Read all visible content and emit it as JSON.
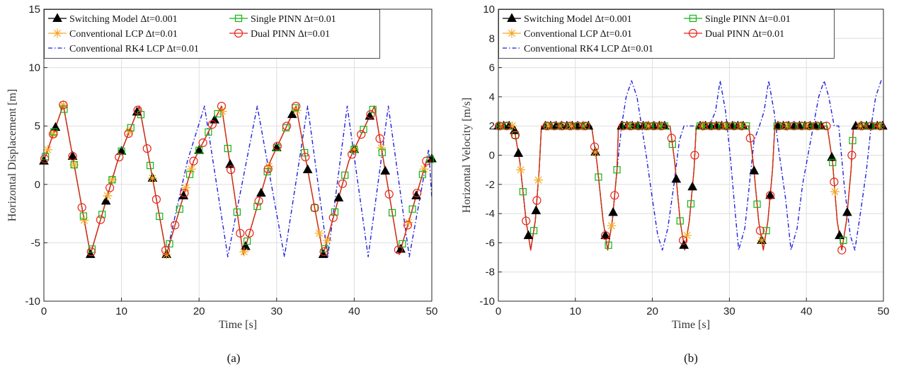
{
  "colors": {
    "switching": "#000000",
    "conventional_lcp": "#F5A623",
    "rk4": "#1F1FE0",
    "single_pinn": "#12B512",
    "dual_pinn": "#E8231C",
    "grid": "#dedede",
    "axis": "#262626"
  },
  "legend_entries": [
    {
      "key": "switching",
      "label": "Switching Model Δt=0.001",
      "marker": "triangle-icon",
      "line": "solid"
    },
    {
      "key": "single_pinn",
      "label": "Single PINN Δt=0.01",
      "marker": "square-icon",
      "line": "solid"
    },
    {
      "key": "conventional_lcp",
      "label": "Conventional LCP Δt=0.01",
      "marker": "asterisk-icon",
      "line": "solid"
    },
    {
      "key": "dual_pinn",
      "label": "Dual PINN Δt=0.01",
      "marker": "circle-icon",
      "line": "solid"
    },
    {
      "key": "rk4",
      "label": "Conventional RK4 LCP Δt=0.01",
      "marker": "none",
      "line": "dashdot"
    }
  ],
  "chart_data": [
    {
      "type": "line",
      "caption": "(a)",
      "xlabel": "Time [s]",
      "ylabel": "Horizontal Displacement [m]",
      "xlim": [
        0,
        50
      ],
      "ylim": [
        -10,
        15
      ],
      "xticks": [
        0,
        10,
        20,
        30,
        40,
        50
      ],
      "yticks": [
        -10,
        -5,
        0,
        5,
        10,
        15
      ],
      "grid": true,
      "legend_position": "top-left",
      "series": [
        {
          "name": "Switching Model Δt=0.001",
          "key": "switching",
          "x": [
            0,
            2.5,
            6,
            9.5,
            12.3,
            15.8,
            19.3,
            22.9,
            25.7,
            29.2,
            32.5,
            36,
            39.3,
            42.6,
            45.8,
            49.3,
            50
          ],
          "y": [
            2,
            6.8,
            -6,
            2,
            6.7,
            -6,
            2,
            6.7,
            -6,
            2,
            6.7,
            -6,
            2,
            6.7,
            -6,
            2,
            2.2
          ],
          "markers_x": [
            0,
            1.5,
            3.7,
            6,
            8,
            10,
            12,
            14,
            15.8,
            18,
            20,
            22,
            24,
            26,
            28,
            30,
            32,
            34,
            36,
            38,
            40,
            42,
            44,
            46,
            48,
            50
          ]
        },
        {
          "name": "Conventional LCP Δt=0.01",
          "key": "conventional_lcp",
          "x": [
            0,
            2.5,
            6,
            9.5,
            12.3,
            15.8,
            19.3,
            22.9,
            25.7,
            29.2,
            32.5,
            36,
            39.3,
            42.6,
            45.8,
            49.3,
            50
          ],
          "y": [
            2,
            6.8,
            -6,
            2,
            6.7,
            -6,
            2,
            6.7,
            -6,
            2,
            6.7,
            -6,
            2,
            6.7,
            -6,
            2,
            2.2
          ],
          "markers_x": [
            0.5,
            1.2,
            2.5,
            3.9,
            5.2,
            8.2,
            8.8,
            11,
            14,
            15.8,
            18.3,
            19,
            23,
            25.8,
            29,
            32.6,
            35.5,
            36.5,
            40,
            43.5,
            47,
            49
          ]
        },
        {
          "name": "Single PINN Δt=0.01",
          "key": "single_pinn",
          "x": [
            0,
            2.5,
            6,
            9.5,
            12.3,
            15.8,
            19.3,
            22.9,
            25.7,
            29.2,
            32.5,
            36,
            39.3,
            42.6,
            45.8,
            49.3,
            50
          ],
          "y": [
            2,
            6.8,
            -6,
            2,
            6.7,
            -6,
            2,
            6.7,
            -6,
            2,
            6.7,
            -6,
            2,
            6.7,
            -6,
            2,
            2.2
          ],
          "markers_x": [
            0.2,
            1.3,
            2.6,
            3.9,
            5.1,
            6.2,
            7.5,
            8.8,
            10,
            11.2,
            12.5,
            13.7,
            14.9,
            16.2,
            17.5,
            18.8,
            20,
            21.2,
            22.4,
            23.7,
            24.9,
            26.2,
            27.5,
            28.8,
            30,
            31.2,
            32.4,
            33.6,
            34.9,
            36.2,
            37.5,
            38.8,
            40,
            41.2,
            42.4,
            43.6,
            44.9,
            46.2,
            47.5,
            48.8,
            49.8
          ]
        },
        {
          "name": "Dual PINN Δt=0.01",
          "key": "dual_pinn",
          "x": [
            0,
            2.5,
            6,
            9.5,
            12.3,
            15.8,
            19.3,
            22.9,
            25.7,
            29.2,
            32.5,
            36,
            39.3,
            42.6,
            45.8,
            49.3,
            50
          ],
          "y": [
            2,
            6.8,
            -6,
            2,
            6.7,
            -6,
            2,
            6.7,
            -6,
            2,
            6.7,
            -6,
            2,
            6.7,
            -6,
            2,
            2.2
          ],
          "markers_x": [
            0.1,
            1.2,
            2.5,
            3.7,
            4.9,
            6.1,
            7.3,
            8.5,
            9.7,
            10.9,
            12.1,
            13.3,
            14.5,
            15.7,
            16.9,
            18.1,
            19.3,
            20.5,
            21.7,
            22.9,
            24.1,
            25.3,
            26.5,
            27.7,
            28.9,
            30.1,
            31.3,
            32.5,
            33.7,
            34.9,
            36.1,
            37.3,
            38.5,
            39.7,
            40.9,
            42.1,
            43.3,
            44.5,
            45.7,
            46.9,
            48.1,
            49.3
          ]
        },
        {
          "name": "Conventional RK4 LCP Δt=0.01",
          "key": "rk4",
          "x": [
            0,
            2.5,
            6,
            9.5,
            12.3,
            15.8,
            18.5,
            20.7,
            23.7,
            27.5,
            31.0,
            34.0,
            36.6,
            39.1,
            41.8,
            44.4,
            47.1,
            49.6,
            50
          ],
          "y": [
            2,
            6.8,
            -6,
            2,
            6.7,
            -6,
            2,
            6.7,
            -6.2,
            6.7,
            -6.2,
            6.7,
            -6.2,
            6.7,
            -6.2,
            6.7,
            -6.2,
            3,
            -1.2
          ]
        }
      ]
    },
    {
      "type": "line",
      "caption": "(b)",
      "xlabel": "Time [s]",
      "ylabel": "Horizontal Velocity [m/s]",
      "xlim": [
        0,
        50
      ],
      "ylim": [
        -10,
        10
      ],
      "xticks": [
        0,
        10,
        20,
        30,
        40,
        50
      ],
      "yticks": [
        -10,
        -8,
        -6,
        -4,
        -2,
        0,
        2,
        4,
        6,
        8,
        10
      ],
      "grid": true,
      "legend_position": "top-left",
      "series": [
        {
          "name": "Switching Model Δt=0.001",
          "key": "switching",
          "x": [
            0,
            2.0,
            2.8,
            3.6,
            4.2,
            4.8,
            5.3,
            5.6,
            12.1,
            12.8,
            13.6,
            14.2,
            14.8,
            15.4,
            15.6,
            22.3,
            22.9,
            23.6,
            24.2,
            24.8,
            25.4,
            25.7,
            32.5,
            33.1,
            33.8,
            34.4,
            35.0,
            35.6,
            35.9,
            42.7,
            43.4,
            44.0,
            44.6,
            45.2,
            45.8,
            46.1,
            50
          ],
          "y": [
            2,
            2,
            -0.5,
            -4.5,
            -6.5,
            -4.5,
            -1,
            2,
            2,
            -0.5,
            -4.5,
            -6.5,
            -4.5,
            -1,
            2,
            2,
            -0.5,
            -4.5,
            -6.5,
            -4.5,
            -1,
            2,
            2,
            -0.5,
            -4.5,
            -6.5,
            -4.5,
            -1,
            2,
            2,
            -0.5,
            -4.5,
            -6.5,
            -4.5,
            -1,
            2,
            2
          ],
          "markers_x": [
            0,
            0.7,
            1.4,
            2.1,
            2.6,
            3.9,
            4.9,
            6.1,
            6.8,
            7.5,
            8.2,
            8.9,
            9.6,
            10.3,
            11,
            11.7,
            12.6,
            13.9,
            14.9,
            16,
            16.7,
            17.4,
            18.1,
            18.8,
            19.5,
            20.2,
            20.9,
            21.6,
            23.1,
            24.1,
            25.2,
            26.2,
            26.9,
            27.6,
            28.3,
            29,
            29.7,
            30.4,
            31.1,
            31.8,
            33.2,
            34.2,
            35.3,
            36.3,
            37,
            37.7,
            38.4,
            39.1,
            39.8,
            40.5,
            41.2,
            41.9,
            43.3,
            44.3,
            45.3,
            46.4,
            47.1,
            47.8,
            48.5,
            49.2,
            49.9
          ]
        },
        {
          "name": "Conventional LCP Δt=0.01",
          "key": "conventional_lcp",
          "x": [
            0,
            2.0,
            2.8,
            3.6,
            4.2,
            4.8,
            5.3,
            5.6,
            12.1,
            12.8,
            13.6,
            14.2,
            14.8,
            15.4,
            15.6,
            22.3,
            22.9,
            23.6,
            24.2,
            24.8,
            25.4,
            25.7,
            32.5,
            33.1,
            33.8,
            34.4,
            35.0,
            35.6,
            35.9,
            42.7,
            43.4,
            44.0,
            44.6,
            45.2,
            45.8,
            46.1,
            50
          ],
          "y": [
            2,
            2,
            -0.5,
            -4.5,
            -6.5,
            -4.5,
            -1,
            2,
            2,
            -0.5,
            -4.5,
            -6.5,
            -4.5,
            -1,
            2,
            2,
            -0.5,
            -4.5,
            -6.5,
            -4.5,
            -1,
            2,
            2,
            -0.5,
            -4.5,
            -6.5,
            -4.5,
            -1,
            2,
            2,
            -0.5,
            -4.5,
            -6.5,
            -4.5,
            -1,
            2,
            2
          ],
          "markers_x": [
            0.3,
            1.8,
            2.9,
            5.2,
            6.5,
            8,
            9.5,
            11,
            12.6,
            14.7,
            17,
            19.5,
            21,
            24.5,
            26.5,
            29.5,
            31.5,
            34.2,
            37.5,
            40,
            43.7,
            47,
            49.5
          ]
        },
        {
          "name": "Single PINN Δt=0.01",
          "key": "single_pinn",
          "x": [
            0,
            2.0,
            2.8,
            3.6,
            4.2,
            4.8,
            5.3,
            5.6,
            12.1,
            12.8,
            13.6,
            14.2,
            14.8,
            15.4,
            15.6,
            22.3,
            22.9,
            23.6,
            24.2,
            24.8,
            25.4,
            25.7,
            32.5,
            33.1,
            33.8,
            34.4,
            35.0,
            35.6,
            35.9,
            42.7,
            43.4,
            44.0,
            44.6,
            45.2,
            45.8,
            46.1,
            50
          ],
          "y": [
            2,
            2,
            -0.5,
            -4.5,
            -6.5,
            -4.5,
            -1,
            2,
            2,
            -0.5,
            -4.5,
            -6.5,
            -4.5,
            -1,
            2,
            2,
            -0.5,
            -4.5,
            -6.5,
            -4.5,
            -1,
            2,
            2,
            -0.5,
            -4.5,
            -6.5,
            -4.5,
            -1,
            2,
            2,
            -0.5,
            -4.5,
            -6.5,
            -4.5,
            -1,
            2,
            2
          ],
          "markers_x": [
            0.2,
            1.2,
            2.2,
            3.2,
            4.6,
            6.4,
            7.4,
            8.4,
            9.4,
            10.4,
            11.4,
            13.0,
            14.3,
            15.4,
            16.6,
            17.6,
            18.6,
            19.6,
            20.6,
            21.6,
            22.6,
            23.6,
            25.0,
            26.2,
            27.2,
            28.2,
            29.2,
            30.2,
            31.2,
            32.2,
            33.6,
            34.8,
            36.2,
            37.2,
            38.2,
            39.2,
            40.2,
            41.2,
            42.2,
            43.4,
            44.8,
            46.0,
            47.2,
            48.2,
            49.2
          ]
        },
        {
          "name": "Dual PINN Δt=0.01",
          "key": "dual_pinn",
          "x": [
            0,
            2.0,
            2.8,
            3.6,
            4.2,
            4.8,
            5.3,
            5.6,
            12.1,
            12.8,
            13.6,
            14.2,
            14.8,
            15.4,
            15.6,
            22.3,
            22.9,
            23.6,
            24.2,
            24.8,
            25.4,
            25.7,
            32.5,
            33.1,
            33.8,
            34.4,
            35.0,
            35.6,
            35.9,
            42.7,
            43.4,
            44.0,
            44.6,
            45.2,
            45.8,
            46.1,
            50
          ],
          "y": [
            2,
            2,
            -0.5,
            -4.5,
            -6.5,
            -4.5,
            -1,
            2,
            2,
            -0.5,
            -4.5,
            -6.5,
            -4.5,
            -1,
            2,
            2,
            -0.5,
            -4.5,
            -6.5,
            -4.5,
            -1,
            2,
            2,
            -0.5,
            -4.5,
            -6.5,
            -4.5,
            -1,
            2,
            2,
            -0.5,
            -4.5,
            -6.5,
            -4.5,
            -1,
            2,
            2
          ],
          "markers_x": [
            0.1,
            1.1,
            2.2,
            3.6,
            5,
            6.3,
            7.3,
            8.3,
            9.3,
            10.3,
            11.3,
            12.5,
            13.9,
            15.1,
            16.2,
            17.2,
            18.2,
            19.2,
            20.2,
            21.2,
            22.5,
            24,
            25.5,
            26.6,
            27.6,
            28.6,
            29.6,
            30.6,
            31.6,
            32.7,
            34,
            35.3,
            36.4,
            37.4,
            38.4,
            39.4,
            40.4,
            41.4,
            42.6,
            43.6,
            44.6,
            45.9,
            47.2,
            48.4,
            49.6
          ]
        },
        {
          "name": "Conventional RK4 LCP Δt=0.01",
          "key": "rk4",
          "x": [
            0,
            2.0,
            2.8,
            3.6,
            4.2,
            4.8,
            5.3,
            5.6,
            12.1,
            12.8,
            13.6,
            14.2,
            14.8,
            15.4,
            16.0,
            16.6,
            17.3,
            18.0,
            18.6,
            19.2,
            20.0,
            20.7,
            21.3,
            22.0,
            22.8,
            23.5,
            24.1,
            24.7,
            25.6,
            27.4,
            28.2,
            28.8,
            29.5,
            30.1,
            30.6,
            31.2,
            32.0,
            32.6,
            33.2,
            33.9,
            34.5,
            35.1,
            35.8,
            36.5,
            37.3,
            38.0,
            38.8,
            39.5,
            40.2,
            40.9,
            41.6,
            42.3,
            42.9,
            43.6,
            44.2,
            44.9,
            45.7,
            46.3,
            47.0,
            47.8,
            48.4,
            49.0,
            49.7,
            50
          ],
          "y": [
            2,
            2,
            -0.5,
            -4.5,
            -6.5,
            -4.5,
            -1,
            2,
            2,
            -0.5,
            -4.5,
            -6.5,
            -4.5,
            -1,
            2,
            4,
            5.1,
            4,
            2,
            0,
            -3,
            -5.5,
            -6.5,
            -5,
            -2,
            1,
            2,
            2,
            2,
            2,
            3,
            5.1,
            3,
            0,
            -3,
            -6.5,
            -5,
            -2,
            1,
            2,
            3,
            5.1,
            3,
            0,
            -3,
            -6.5,
            -5,
            -2,
            0,
            2,
            4,
            5.1,
            4,
            2,
            2,
            -2,
            -5.5,
            -6.5,
            -4,
            -1,
            2,
            4,
            5.1,
            5
          ]
        }
      ]
    }
  ]
}
